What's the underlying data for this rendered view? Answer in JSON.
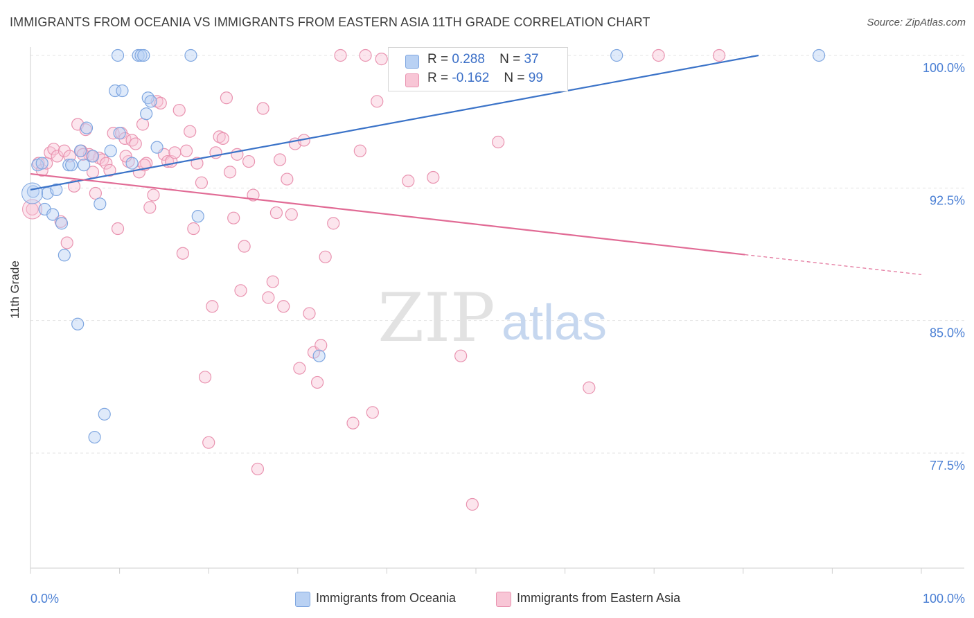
{
  "title": "IMMIGRANTS FROM OCEANIA VS IMMIGRANTS FROM EASTERN ASIA 11TH GRADE CORRELATION CHART",
  "source": "Source: ZipAtlas.com",
  "watermark": {
    "zip": "ZIP",
    "atlas": "atlas"
  },
  "legend": {
    "rows": [
      {
        "r_label": "R =",
        "r_value": "0.288",
        "n_label": "N =",
        "n_value": "37"
      },
      {
        "r_label": "R =",
        "r_value": "-0.162",
        "n_label": "N =",
        "n_value": "99"
      }
    ]
  },
  "bottom_legend": [
    "Immigrants from Oceania",
    "Immigrants from Eastern Asia"
  ],
  "colors": {
    "oceania_fill": "#b9d1f3",
    "oceania_stroke": "#7ea6e0",
    "oceania_line": "#3b73c8",
    "easia_fill": "#f8c6d6",
    "easia_stroke": "#e993b0",
    "easia_line": "#e16b95",
    "tick_text": "#4a7fd4",
    "grid": "#e3e3e3"
  },
  "chart_data": {
    "type": "scatter",
    "title": "IMMIGRANTS FROM OCEANIA VS IMMIGRANTS FROM EASTERN ASIA 11TH GRADE CORRELATION CHART",
    "xlabel": "",
    "ylabel": "11th Grade",
    "xlim": [
      0,
      100
    ],
    "ylim": [
      70.0,
      100.7
    ],
    "x_tick_labels": [
      "0.0%",
      "100.0%"
    ],
    "y_ticks": [
      100.0,
      92.5,
      85.0,
      77.5
    ],
    "y_tick_labels": [
      "100.0%",
      "92.5%",
      "85.0%",
      "77.5%"
    ],
    "grid": true,
    "series": [
      {
        "name": "Immigrants from Oceania",
        "r": 0.288,
        "n": 37,
        "trend": {
          "x0": 0.0,
          "y0": 92.4,
          "x1": 100.0,
          "y1": 101.7,
          "solid_until": 100.0
        },
        "points": [
          [
            0.3,
            92.3
          ],
          [
            0.8,
            93.8
          ],
          [
            1.3,
            93.9
          ],
          [
            1.6,
            91.3
          ],
          [
            1.9,
            92.2
          ],
          [
            2.5,
            91.0
          ],
          [
            2.9,
            92.4
          ],
          [
            3.5,
            90.5
          ],
          [
            3.8,
            88.7
          ],
          [
            4.3,
            93.8
          ],
          [
            4.6,
            93.8
          ],
          [
            5.3,
            84.8
          ],
          [
            5.6,
            94.6
          ],
          [
            6.0,
            93.8
          ],
          [
            6.3,
            95.9
          ],
          [
            7.0,
            94.3
          ],
          [
            7.8,
            91.6
          ],
          [
            8.3,
            79.7
          ],
          [
            9.0,
            94.6
          ],
          [
            9.5,
            98.0
          ],
          [
            9.8,
            100.0
          ],
          [
            10.0,
            95.6
          ],
          [
            10.3,
            98.0
          ],
          [
            11.4,
            93.9
          ],
          [
            12.1,
            100.0
          ],
          [
            12.4,
            100.0
          ],
          [
            12.7,
            100.0
          ],
          [
            13.0,
            96.7
          ],
          [
            13.2,
            97.6
          ],
          [
            13.5,
            97.4
          ],
          [
            14.2,
            94.8
          ],
          [
            18.0,
            100.0
          ],
          [
            18.8,
            90.9
          ],
          [
            32.4,
            83.0
          ],
          [
            65.8,
            100.0
          ],
          [
            88.5,
            100.0
          ],
          [
            7.2,
            78.4
          ]
        ]
      },
      {
        "name": "Immigrants from Eastern Asia",
        "r": -0.162,
        "n": 99,
        "trend": {
          "x0": 0.0,
          "y0": 93.3,
          "x1": 100.0,
          "y1": 87.6,
          "solid_until": 80.2
        },
        "points": [
          [
            0.2,
            91.3
          ],
          [
            0.9,
            93.9
          ],
          [
            1.3,
            93.5
          ],
          [
            1.8,
            93.9
          ],
          [
            2.2,
            94.5
          ],
          [
            2.6,
            94.7
          ],
          [
            3.0,
            94.3
          ],
          [
            3.4,
            90.6
          ],
          [
            3.8,
            94.6
          ],
          [
            4.1,
            89.4
          ],
          [
            4.4,
            94.3
          ],
          [
            4.9,
            92.6
          ],
          [
            5.3,
            96.1
          ],
          [
            5.7,
            94.6
          ],
          [
            6.2,
            95.8
          ],
          [
            6.6,
            94.4
          ],
          [
            7.0,
            93.4
          ],
          [
            7.3,
            92.2
          ],
          [
            7.7,
            94.2
          ],
          [
            8.1,
            94.1
          ],
          [
            8.5,
            93.9
          ],
          [
            8.9,
            93.5
          ],
          [
            9.3,
            95.6
          ],
          [
            9.8,
            90.2
          ],
          [
            10.2,
            95.6
          ],
          [
            10.6,
            95.3
          ],
          [
            11.0,
            94.0
          ],
          [
            11.4,
            95.2
          ],
          [
            11.8,
            95.0
          ],
          [
            12.2,
            93.4
          ],
          [
            12.6,
            96.1
          ],
          [
            13.0,
            93.9
          ],
          [
            13.4,
            91.4
          ],
          [
            13.8,
            92.1
          ],
          [
            14.2,
            97.4
          ],
          [
            14.6,
            97.3
          ],
          [
            15.0,
            94.4
          ],
          [
            15.4,
            94.0
          ],
          [
            15.8,
            94.0
          ],
          [
            16.2,
            94.5
          ],
          [
            16.7,
            96.9
          ],
          [
            17.1,
            88.8
          ],
          [
            17.5,
            94.6
          ],
          [
            17.9,
            95.7
          ],
          [
            18.3,
            90.2
          ],
          [
            18.7,
            93.9
          ],
          [
            19.2,
            92.8
          ],
          [
            19.6,
            81.8
          ],
          [
            20.0,
            78.1
          ],
          [
            20.4,
            85.8
          ],
          [
            20.8,
            94.5
          ],
          [
            21.2,
            95.4
          ],
          [
            21.6,
            95.3
          ],
          [
            22.0,
            97.6
          ],
          [
            22.4,
            93.4
          ],
          [
            22.8,
            90.8
          ],
          [
            23.2,
            94.4
          ],
          [
            23.6,
            86.7
          ],
          [
            24.0,
            89.2
          ],
          [
            24.5,
            94.0
          ],
          [
            25.0,
            92.1
          ],
          [
            25.5,
            76.6
          ],
          [
            26.1,
            97.0
          ],
          [
            26.7,
            86.3
          ],
          [
            27.2,
            87.2
          ],
          [
            27.6,
            91.1
          ],
          [
            28.0,
            94.1
          ],
          [
            28.4,
            85.8
          ],
          [
            28.8,
            93.0
          ],
          [
            29.3,
            91.0
          ],
          [
            29.7,
            95.0
          ],
          [
            30.2,
            82.3
          ],
          [
            30.7,
            95.2
          ],
          [
            31.3,
            85.4
          ],
          [
            31.8,
            83.2
          ],
          [
            32.2,
            81.5
          ],
          [
            32.6,
            83.6
          ],
          [
            33.1,
            88.6
          ],
          [
            34.0,
            90.5
          ],
          [
            34.8,
            100.0
          ],
          [
            36.2,
            79.2
          ],
          [
            37.0,
            94.6
          ],
          [
            37.6,
            100.0
          ],
          [
            38.4,
            79.8
          ],
          [
            38.9,
            97.4
          ],
          [
            39.4,
            99.8
          ],
          [
            41.2,
            100.0
          ],
          [
            42.4,
            92.9
          ],
          [
            45.2,
            93.1
          ],
          [
            48.3,
            83.0
          ],
          [
            49.6,
            74.6
          ],
          [
            52.5,
            95.1
          ],
          [
            62.7,
            81.2
          ],
          [
            70.5,
            100.0
          ],
          [
            77.3,
            100.0
          ],
          [
            6.9,
            94.3
          ],
          [
            12.8,
            93.8
          ],
          [
            5.9,
            94.4
          ],
          [
            10.7,
            94.3
          ]
        ]
      }
    ]
  }
}
